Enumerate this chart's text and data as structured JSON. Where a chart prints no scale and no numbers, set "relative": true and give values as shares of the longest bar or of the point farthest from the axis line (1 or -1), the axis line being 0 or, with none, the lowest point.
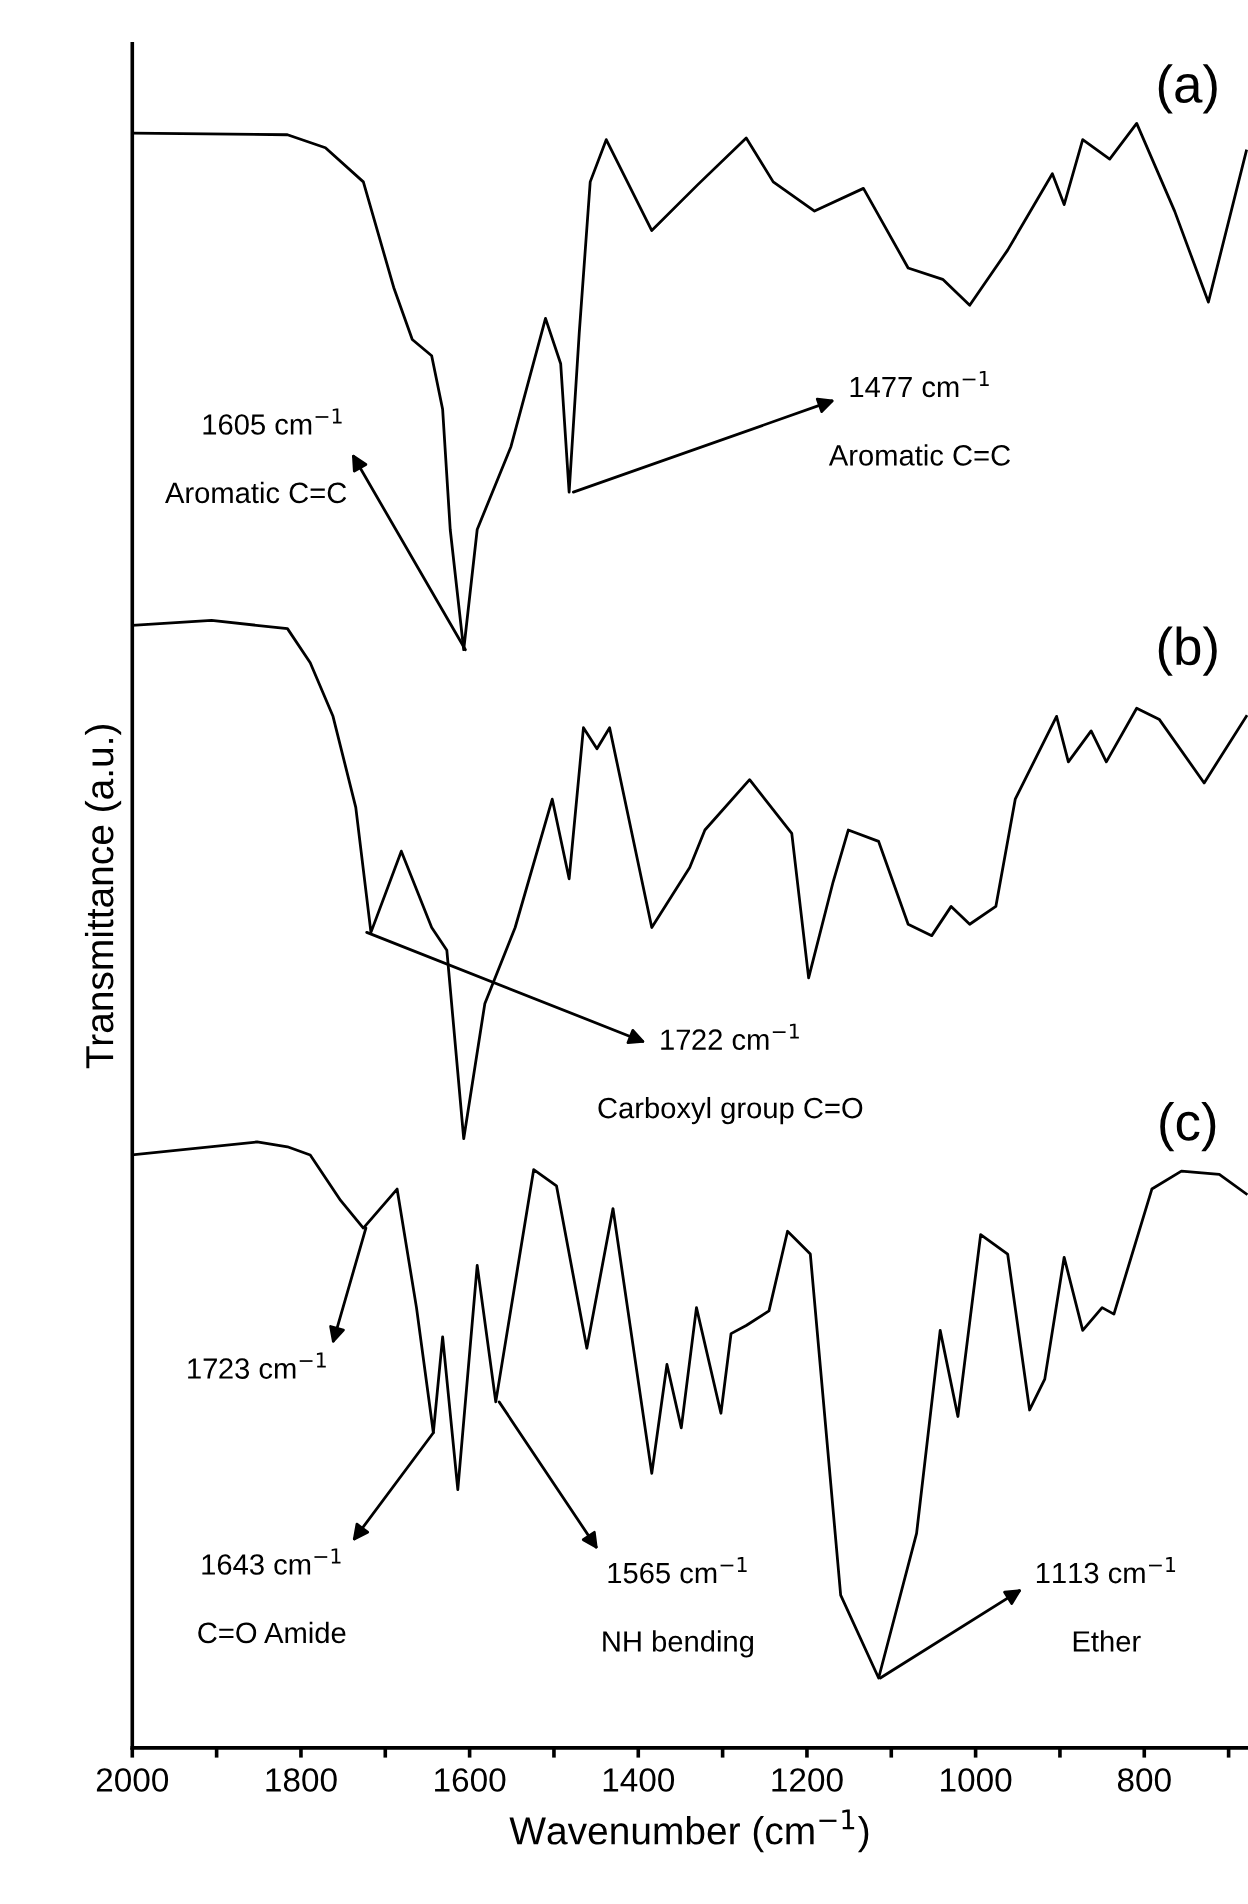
{
  "chart_data": {
    "type": "line",
    "relative": true,
    "xlabel": "Wavenumber (cm$^{−1}$)",
    "ylabel": "Transmittance (a.u.)",
    "xlim": [
      2000,
      677
    ],
    "xticks": [
      2000,
      {
        "value": 1900,
        "label": null
      },
      1800,
      {
        "value": 1700,
        "label": null
      },
      1600,
      {
        "value": 1500,
        "label": null
      },
      1400,
      {
        "value": 1300,
        "label": null
      },
      1200,
      {
        "value": 1100,
        "label": null
      },
      1000,
      {
        "value": 900,
        "label": null
      },
      800,
      {
        "value": 700,
        "label": null
      }
    ],
    "tick_labels": "x",
    "grid": false,
    "legend": false,
    "marker": "none",
    "line_style": "solid",
    "series": [
      {
        "name": "(a)",
        "color": "#000000",
        "x": [
          2000,
          1816,
          1771,
          1726,
          1690,
          1668,
          1645,
          1632,
          1623,
          1607,
          1591,
          1573,
          1551,
          1510,
          1492,
          1482,
          1470,
          1457,
          1438,
          1384,
          1330,
          1272,
          1240,
          1191,
          1133,
          1080,
          1039,
          1007,
          962,
          909,
          895,
          873,
          841,
          809,
          764,
          724,
          679
        ],
        "values": [
          0.994,
          0.993,
          0.985,
          0.964,
          0.899,
          0.867,
          0.857,
          0.824,
          0.75,
          0.676,
          0.75,
          0.773,
          0.801,
          0.88,
          0.852,
          0.773,
          0.871,
          0.964,
          0.99,
          0.934,
          0.962,
          0.991,
          0.964,
          0.946,
          0.96,
          0.911,
          0.904,
          0.888,
          0.922,
          0.969,
          0.95,
          0.99,
          0.978,
          1.0,
          0.946,
          0.89,
          0.983
        ]
      },
      {
        "name": "(b)",
        "color": "#000000",
        "x": [
          2000,
          1906,
          1816,
          1789,
          1762,
          1735,
          1717,
          1681,
          1645,
          1627,
          1607,
          1582,
          1546,
          1502,
          1482,
          1465,
          1449,
          1434,
          1384,
          1339,
          1321,
          1268,
          1218,
          1198,
          1169,
          1151,
          1115,
          1080,
          1052,
          1029,
          1007,
          976,
          953,
          904,
          890,
          863,
          845,
          809,
          782,
          729,
          679
        ],
        "values": [
          0.691,
          0.694,
          0.689,
          0.668,
          0.635,
          0.579,
          0.502,
          0.552,
          0.505,
          0.491,
          0.375,
          0.458,
          0.505,
          0.584,
          0.535,
          0.628,
          0.615,
          0.628,
          0.505,
          0.542,
          0.565,
          0.596,
          0.563,
          0.474,
          0.533,
          0.565,
          0.558,
          0.507,
          0.5,
          0.518,
          0.507,
          0.518,
          0.584,
          0.635,
          0.607,
          0.626,
          0.607,
          0.64,
          0.633,
          0.594,
          0.635
        ]
      },
      {
        "name": "(c)",
        "color": "#000000",
        "x": [
          2000,
          1852,
          1816,
          1789,
          1753,
          1726,
          1686,
          1663,
          1643,
          1632,
          1614,
          1591,
          1569,
          1524,
          1497,
          1461,
          1430,
          1384,
          1366,
          1349,
          1331,
          1302,
          1290,
          1272,
          1245,
          1223,
          1196,
          1160,
          1115,
          1070,
          1042,
          1021,
          994,
          962,
          936,
          918,
          895,
          873,
          850,
          836,
          791,
          756,
          711,
          679
        ],
        "values": [
          0.365,
          0.373,
          0.37,
          0.365,
          0.337,
          0.32,
          0.344,
          0.271,
          0.194,
          0.253,
          0.159,
          0.297,
          0.213,
          0.356,
          0.346,
          0.246,
          0.332,
          0.169,
          0.236,
          0.197,
          0.271,
          0.206,
          0.255,
          0.26,
          0.269,
          0.318,
          0.304,
          0.094,
          0.043,
          0.132,
          0.257,
          0.204,
          0.316,
          0.304,
          0.208,
          0.227,
          0.302,
          0.257,
          0.271,
          0.267,
          0.344,
          0.355,
          0.353,
          0.341
        ]
      }
    ],
    "annotations": [
      {
        "text": "1605 cm$^{−1}$",
        "x": 1605,
        "y": 0.676
      },
      "Aromatic C=C",
      {
        "text": "1477 cm$^{−1}$",
        "x": 1477,
        "y": 0.773
      },
      "Aromatic C=C",
      {
        "text": "1722 cm$^{−1}$",
        "x": 1722,
        "y": 0.502
      },
      "Carboxyl group C=O",
      {
        "text": "1723 cm$^{−1}$",
        "x": 1723,
        "y": 0.32
      },
      {
        "text": "1643 cm$^{−1}$",
        "x": 1643,
        "y": 0.194
      },
      "C=O Amide",
      {
        "text": "1565 cm$^{−1}$",
        "x": 1565,
        "y": 0.213
      },
      "NH bending",
      {
        "text": "1113 cm$^{−1}$",
        "x": 1113,
        "y": 0.043
      },
      "Ether"
    ]
  }
}
